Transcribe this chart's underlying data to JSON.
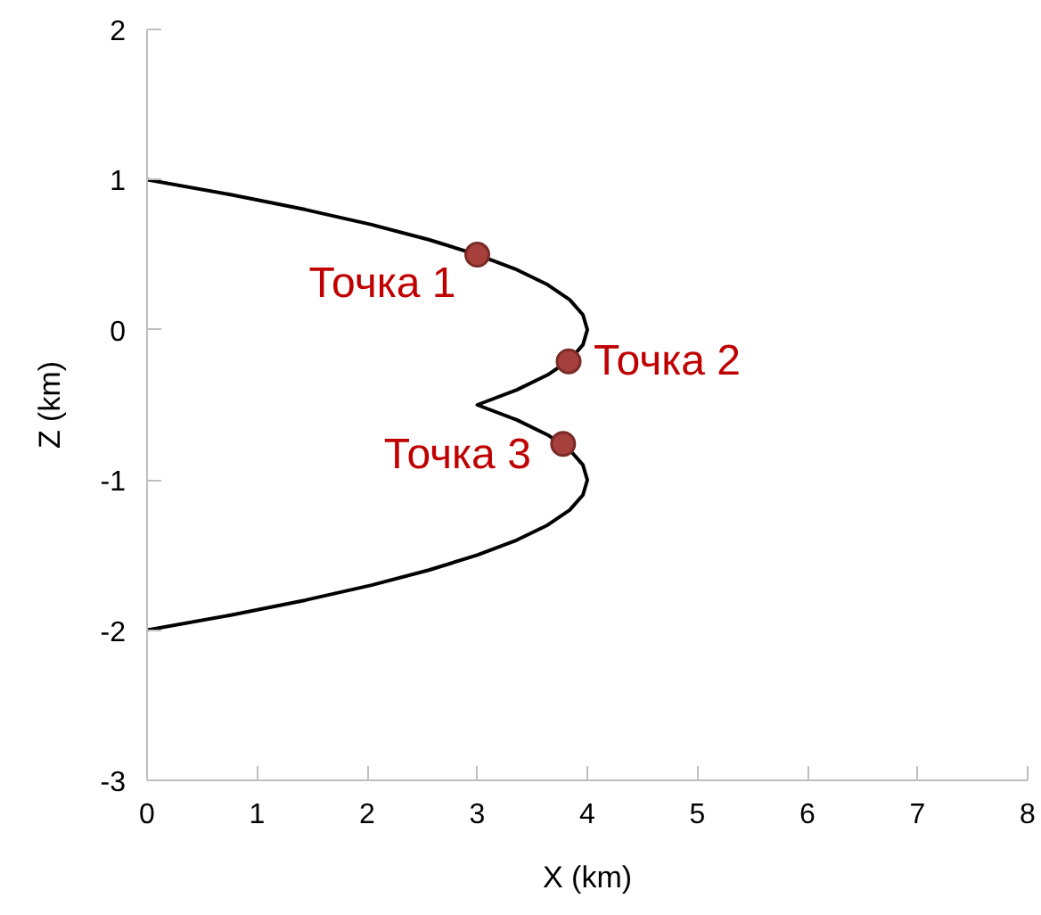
{
  "chart_data": {
    "type": "line",
    "xlabel": "X (km)",
    "ylabel": "Z (km)",
    "xlim": [
      0,
      8
    ],
    "ylim": [
      -3,
      2
    ],
    "xticks": [
      0,
      1,
      2,
      3,
      4,
      5,
      6,
      7,
      8
    ],
    "yticks": [
      -3,
      -2,
      -1,
      0,
      1,
      2
    ],
    "grid": false,
    "series": [
      {
        "color": "#000000",
        "line_style": "solid",
        "marker": "none",
        "x": [
          0,
          0.76,
          1.44,
          2.04,
          2.56,
          3.0,
          3.36,
          3.64,
          3.84,
          3.96,
          4.0,
          3.96,
          3.84,
          3.64,
          3.36,
          3.0,
          3.36,
          3.64,
          3.84,
          3.96,
          4.0,
          3.96,
          3.84,
          3.64,
          3.36,
          3.0,
          2.56,
          2.04,
          1.44,
          0.76,
          0
        ],
        "values": [
          1,
          0.9,
          0.8,
          0.7,
          0.6,
          0.5,
          0.4,
          0.3,
          0.2,
          0.1,
          0,
          -0.1,
          -0.2,
          -0.3,
          -0.4,
          -0.5,
          -0.6,
          -0.7,
          -0.8,
          -0.9,
          -1.0,
          -1.1,
          -1.2,
          -1.3,
          -1.4,
          -1.5,
          -1.6,
          -1.7,
          -1.8,
          -1.9,
          -2.0
        ]
      },
      {
        "type": "scatter",
        "color": "#a5403c",
        "marker": "circle",
        "x": [
          3.0,
          3.83,
          3.78
        ],
        "values": [
          0.5,
          -0.21,
          -0.76
        ]
      }
    ],
    "annotations": [
      {
        "text": "Точка 1",
        "x": 3.0,
        "y": 0.5
      },
      {
        "text": "Точка 2",
        "x": 3.83,
        "y": -0.21
      },
      {
        "text": "Точка 3",
        "x": 3.78,
        "y": -0.76
      }
    ]
  }
}
